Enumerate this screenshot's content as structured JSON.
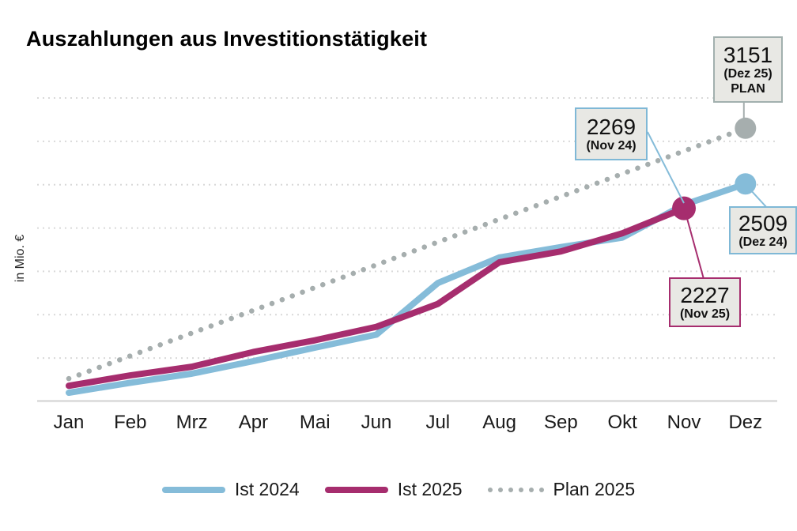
{
  "title": "Auszahlungen aus Investitionstätigkeit",
  "y_axis_label": "in Mio. €",
  "colors": {
    "blue": "#85bcd9",
    "magenta": "#a62d6e",
    "gray": "#a6aeae",
    "grid": "#d9d9d9",
    "annotation_fill": "#e8e8e4"
  },
  "chart_data": {
    "type": "line",
    "title": "Auszahlungen aus Investitionstätigkeit",
    "ylabel": "in Mio. €",
    "xlabel": "",
    "ylim": [
      0,
      3500
    ],
    "gridline_step": 500,
    "grid": "dotted-horizontal",
    "legend_position": "bottom",
    "categories": [
      "Jan",
      "Feb",
      "Mrz",
      "Apr",
      "Mai",
      "Jun",
      "Jul",
      "Aug",
      "Sep",
      "Okt",
      "Nov",
      "Dez"
    ],
    "series": [
      {
        "name": "Ist 2024",
        "color_key": "blue",
        "style": "solid",
        "values": [
          100,
          215,
          320,
          465,
          620,
          770,
          1365,
          1660,
          1780,
          1890,
          2269,
          2509
        ]
      },
      {
        "name": "Ist 2025",
        "color_key": "magenta",
        "style": "solid",
        "values": [
          180,
          300,
          400,
          570,
          705,
          860,
          1125,
          1605,
          1730,
          1940,
          2227
        ]
      },
      {
        "name": "Plan 2025",
        "color_key": "gray",
        "style": "dotted",
        "values": [
          263,
          525,
          788,
          1050,
          1313,
          1575,
          1838,
          2101,
          2363,
          2626,
          2888,
          3151
        ]
      }
    ],
    "end_markers": [
      {
        "series": 2,
        "index": 11,
        "r": 13.5
      },
      {
        "series": 0,
        "index": 11,
        "r": 13.5
      },
      {
        "series": 1,
        "index": 10,
        "r": 15
      }
    ]
  },
  "annotations": [
    {
      "value": "3151",
      "label": "(Dez 25)",
      "sublabel": "PLAN"
    },
    {
      "value": "2269",
      "label": "(Nov 24)"
    },
    {
      "value": "2509",
      "label": "(Dez 24)"
    },
    {
      "value": "2227",
      "label": "(Nov 25)"
    }
  ]
}
